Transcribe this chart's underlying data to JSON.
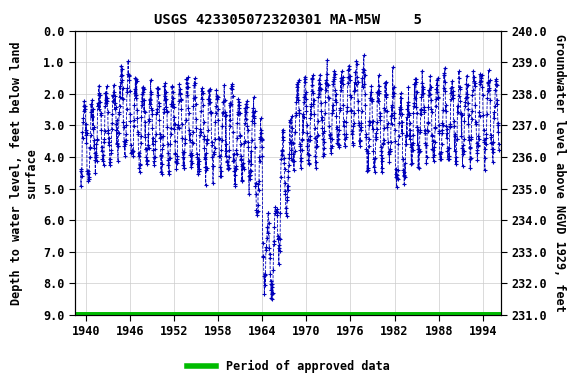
{
  "title": "USGS 423305072320301 MA-M5W    5",
  "ylabel_left": "Depth to water level, feet below land\nsurface",
  "ylabel_right": "Groundwater level above NGVD 1929, feet",
  "xlabel": "",
  "ylim_left": [
    0.0,
    9.0
  ],
  "ylim_right": [
    231.0,
    240.0
  ],
  "xlim": [
    1938.5,
    1996.5
  ],
  "xticks": [
    1940,
    1946,
    1952,
    1958,
    1964,
    1970,
    1976,
    1982,
    1988,
    1994
  ],
  "yticks_left": [
    0.0,
    1.0,
    2.0,
    3.0,
    4.0,
    5.0,
    6.0,
    7.0,
    8.0,
    9.0
  ],
  "yticks_right": [
    231.0,
    232.0,
    233.0,
    234.0,
    235.0,
    236.0,
    237.0,
    238.0,
    239.0,
    240.0
  ],
  "line_color": "#0000BB",
  "approved_color": "#00BB00",
  "legend_label": "Period of approved data",
  "background_color": "#ffffff",
  "title_fontsize": 10,
  "axis_label_fontsize": 8.5,
  "tick_fontsize": 8.5
}
